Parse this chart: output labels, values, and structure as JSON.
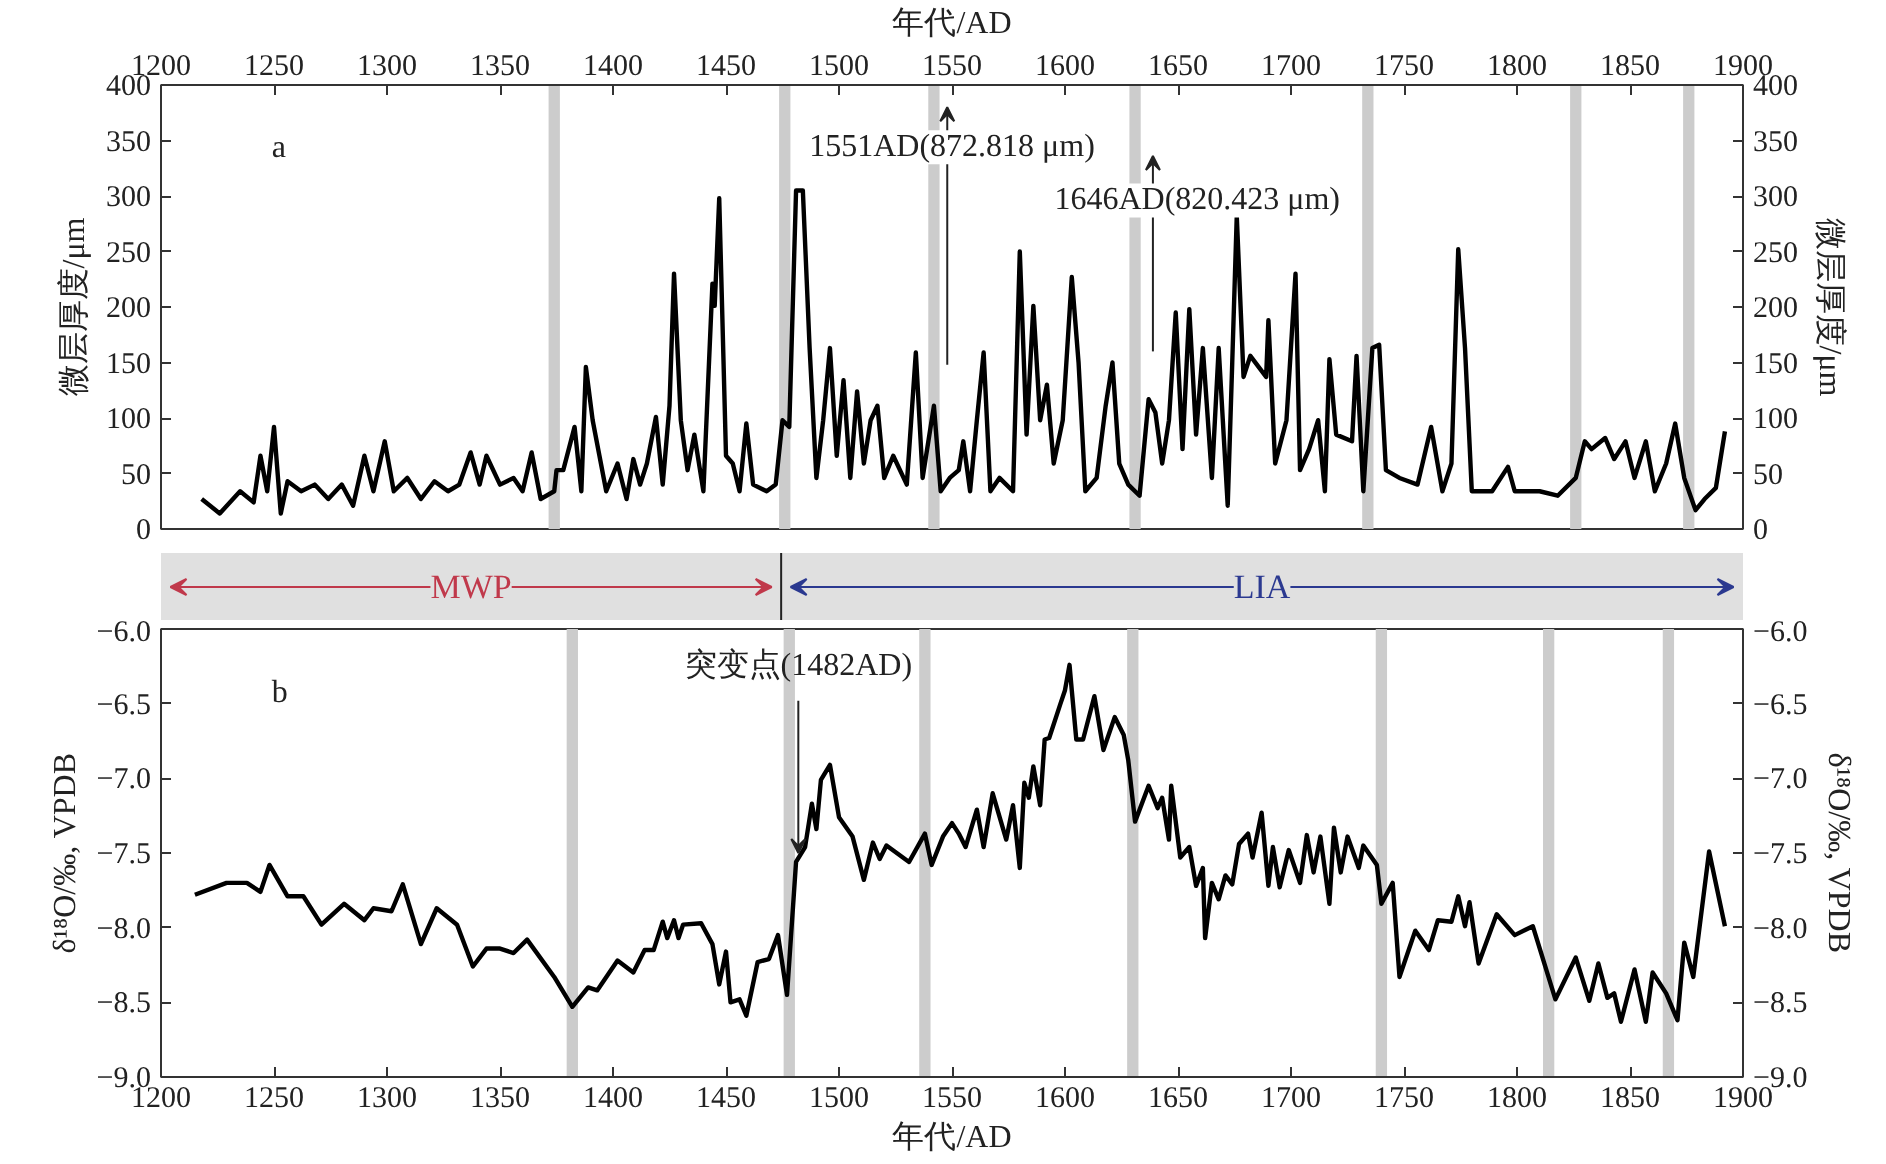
{
  "chart_data": [
    {
      "type": "line",
      "xlabel": "年代/AD",
      "ylabel": "微层厚度/μm",
      "y2label": "微层厚度/μm",
      "xlim": [
        1200,
        1900
      ],
      "xticks": [
        1200,
        1250,
        1300,
        1350,
        1400,
        1450,
        1500,
        1550,
        1600,
        1650,
        1700,
        1750,
        1800,
        1850,
        1900
      ],
      "ylim": [
        0,
        400
      ],
      "yticks": [
        0,
        50,
        100,
        150,
        200,
        250,
        300,
        350,
        400
      ],
      "y2lim": [
        0,
        400
      ],
      "y2ticks": [
        0,
        50,
        100,
        150,
        200,
        250,
        300,
        350,
        400
      ],
      "x": [
        1218,
        1226,
        1235,
        1241,
        1244,
        1247,
        1250,
        1253,
        1256,
        1262,
        1268,
        1274,
        1280,
        1285,
        1290,
        1294,
        1299,
        1303,
        1309,
        1315,
        1321,
        1327,
        1332,
        1337,
        1341,
        1344,
        1350,
        1356,
        1360,
        1364,
        1368,
        1374,
        1375,
        1378,
        1383,
        1386,
        1388,
        1391,
        1394,
        1397,
        1402,
        1406,
        1409,
        1412,
        1415,
        1419,
        1422,
        1425,
        1427,
        1430,
        1433,
        1436,
        1440,
        1444,
        1445,
        1447,
        1450,
        1453,
        1456,
        1459,
        1462,
        1468,
        1472,
        1475,
        1478,
        1481,
        1484,
        1487,
        1490,
        1493,
        1496,
        1499,
        1502,
        1505,
        1508,
        1511,
        1514,
        1517,
        1520,
        1524,
        1530,
        1534,
        1537,
        1542,
        1545,
        1549,
        1553,
        1555,
        1558,
        1561,
        1564,
        1567,
        1571,
        1577,
        1580,
        1583,
        1586,
        1589,
        1592,
        1595,
        1599,
        1603,
        1606,
        1609,
        1614,
        1618,
        1621,
        1624,
        1628,
        1633,
        1637,
        1640,
        1643,
        1646,
        1649,
        1652,
        1655,
        1658,
        1661,
        1665,
        1668,
        1672,
        1674,
        1676,
        1679,
        1682,
        1689,
        1690,
        1693,
        1698,
        1702,
        1704,
        1708,
        1712,
        1715,
        1717,
        1720,
        1727,
        1729,
        1732,
        1736,
        1739,
        1742,
        1748,
        1756,
        1762,
        1767,
        1771,
        1774,
        1777,
        1780,
        1789,
        1796,
        1799,
        1810,
        1818,
        1826,
        1830,
        1833,
        1839,
        1843,
        1848,
        1852,
        1857,
        1861,
        1866,
        1870,
        1874,
        1879,
        1883,
        1888,
        1892
      ],
      "series": [
        {
          "color": "#000000",
          "values": [
            27,
            14,
            34,
            24,
            66,
            34,
            92,
            14,
            43,
            34,
            40,
            27,
            40,
            21,
            66,
            34,
            79,
            34,
            46,
            27,
            43,
            34,
            40,
            69,
            40,
            66,
            40,
            46,
            34,
            69,
            27,
            34,
            53,
            53,
            92,
            34,
            146,
            98,
            66,
            34,
            59,
            27,
            63,
            40,
            59,
            101,
            40,
            111,
            230,
            98,
            53,
            85,
            34,
            221,
            201,
            298,
            66,
            59,
            34,
            95,
            40,
            34,
            40,
            98,
            92,
            305,
            305,
            163,
            46,
            98,
            163,
            66,
            134,
            46,
            124,
            59,
            98,
            111,
            46,
            66,
            40,
            159,
            46,
            111,
            34,
            46,
            53,
            79,
            34,
            98,
            159,
            34,
            46,
            34,
            250,
            85,
            201,
            98,
            130,
            59,
            98,
            227,
            150,
            34,
            46,
            111,
            150,
            59,
            40,
            30,
            117,
            105,
            59,
            98,
            195,
            72,
            198,
            85,
            163,
            46,
            163,
            21,
            150,
            282,
            137,
            156,
            137,
            188,
            59,
            98,
            230,
            53,
            72,
            98,
            34,
            153,
            85,
            79,
            156,
            34,
            163,
            166,
            53,
            46,
            40,
            92,
            34,
            59,
            252,
            163,
            34,
            34,
            56,
            34,
            34,
            30,
            46,
            79,
            72,
            82,
            63,
            79,
            46,
            79,
            34,
            59,
            95,
            46,
            17,
            27,
            37,
            88
          ]
        }
      ],
      "annotations": [
        "a",
        "1551AD(872.818 μm)",
        "1646AD(820.423 μm)",
        "MWP",
        "LIA"
      ],
      "bands": [
        {
          "axis": "x",
          "from": 1371.5,
          "to": 1376.5,
          "color": "#cccccc"
        },
        {
          "axis": "x",
          "from": 1473.5,
          "to": 1478.5,
          "color": "#cccccc"
        },
        {
          "axis": "x",
          "from": 1539.5,
          "to": 1544.5,
          "color": "#cccccc"
        },
        {
          "axis": "x",
          "from": 1628.5,
          "to": 1633.5,
          "color": "#cccccc"
        },
        {
          "axis": "x",
          "from": 1731.5,
          "to": 1736.5,
          "color": "#cccccc"
        },
        {
          "axis": "x",
          "from": 1823.5,
          "to": 1828.5,
          "color": "#cccccc"
        },
        {
          "axis": "x",
          "from": 1873.5,
          "to": 1878.5,
          "color": "#cccccc"
        }
      ]
    },
    {
      "type": "line",
      "xlabel": "年代/AD",
      "ylabel": "δ¹⁸O/‰, VPDB",
      "y2label": "δ¹⁸O/‰, VPDB",
      "xlim": [
        1200,
        1900
      ],
      "xticks": [
        1200,
        1250,
        1300,
        1350,
        1400,
        1450,
        1500,
        1550,
        1600,
        1650,
        1700,
        1750,
        1800,
        1850,
        1900
      ],
      "ylim": [
        -9,
        -6
      ],
      "yticks": [
        {
          "value": -9,
          "label": "−9.0"
        },
        {
          "value": -8.5,
          "label": "−8.5"
        },
        {
          "value": -8,
          "label": "−8.0"
        },
        {
          "value": -7.5,
          "label": "−7.5"
        },
        {
          "value": -7,
          "label": "−7.0"
        },
        {
          "value": -6.5,
          "label": "−6.5"
        },
        {
          "value": -6,
          "label": "−6.0"
        }
      ],
      "y2lim": [
        -9,
        -6
      ],
      "y2ticks": [
        {
          "value": -9,
          "label": "−9.0"
        },
        {
          "value": -8.5,
          "label": "−8.5"
        },
        {
          "value": -8,
          "label": "−8.0"
        },
        {
          "value": -7.5,
          "label": "−7.5"
        },
        {
          "value": -7,
          "label": "−7.0"
        },
        {
          "value": -6.5,
          "label": "−6.5"
        },
        {
          "value": -6,
          "label": "−6.0"
        }
      ],
      "x": [
        1215,
        1229,
        1238,
        1244,
        1248,
        1256,
        1263,
        1271,
        1281,
        1290,
        1294,
        1302,
        1307,
        1315,
        1322,
        1331,
        1338,
        1344,
        1350,
        1356,
        1362,
        1374,
        1382,
        1389,
        1393,
        1402,
        1409,
        1414,
        1418,
        1422,
        1424,
        1427,
        1429,
        1431,
        1439,
        1444,
        1447,
        1450,
        1452,
        1456,
        1459,
        1464,
        1469,
        1473,
        1477,
        1481,
        1485,
        1488,
        1490,
        1492,
        1496,
        1500,
        1506,
        1511,
        1515,
        1518,
        1521,
        1531,
        1538,
        1541,
        1546,
        1550,
        1553,
        1556,
        1561,
        1564,
        1568,
        1574,
        1577,
        1580,
        1582,
        1584,
        1586,
        1589,
        1591,
        1593,
        1598,
        1600,
        1602,
        1603,
        1605,
        1608,
        1613,
        1617,
        1622,
        1626,
        1628,
        1631,
        1637,
        1641,
        1643,
        1646,
        1647,
        1651,
        1655,
        1658,
        1661,
        1662,
        1665,
        1668,
        1671,
        1674,
        1677,
        1681,
        1683,
        1687,
        1690,
        1692,
        1695,
        1699,
        1704,
        1707,
        1710,
        1713,
        1717,
        1719,
        1722,
        1725,
        1730,
        1732,
        1738,
        1740,
        1745,
        1748,
        1755,
        1761,
        1765,
        1771,
        1774,
        1777,
        1779,
        1783,
        1791,
        1799,
        1807,
        1817,
        1826,
        1832,
        1836,
        1840,
        1843,
        1846,
        1852,
        1857,
        1860,
        1866,
        1871,
        1874,
        1878,
        1885,
        1892
      ],
      "series": [
        {
          "color": "#000000",
          "values": [
            -7.78,
            -7.7,
            -7.7,
            -7.76,
            -7.58,
            -7.79,
            -7.79,
            -7.98,
            -7.84,
            -7.95,
            -7.87,
            -7.89,
            -7.71,
            -8.11,
            -7.87,
            -7.98,
            -8.26,
            -8.14,
            -8.14,
            -8.17,
            -8.08,
            -8.33,
            -8.53,
            -8.4,
            -8.42,
            -8.22,
            -8.3,
            -8.15,
            -8.15,
            -7.96,
            -8.07,
            -7.95,
            -8.07,
            -7.98,
            -7.97,
            -8.11,
            -8.38,
            -8.16,
            -8.5,
            -8.48,
            -8.59,
            -8.23,
            -8.21,
            -8.05,
            -8.45,
            -7.56,
            -7.46,
            -7.17,
            -7.34,
            -7.01,
            -6.91,
            -7.26,
            -7.39,
            -7.68,
            -7.43,
            -7.54,
            -7.45,
            -7.56,
            -7.37,
            -7.58,
            -7.39,
            -7.3,
            -7.37,
            -7.46,
            -7.21,
            -7.46,
            -7.1,
            -7.41,
            -7.18,
            -7.6,
            -7.03,
            -7.13,
            -6.92,
            -7.18,
            -6.74,
            -6.73,
            -6.5,
            -6.41,
            -6.24,
            -6.41,
            -6.74,
            -6.74,
            -6.45,
            -6.81,
            -6.59,
            -6.71,
            -6.88,
            -7.29,
            -7.05,
            -7.2,
            -7.13,
            -7.41,
            -7.05,
            -7.53,
            -7.46,
            -7.72,
            -7.6,
            -8.07,
            -7.7,
            -7.81,
            -7.65,
            -7.71,
            -7.44,
            -7.37,
            -7.53,
            -7.23,
            -7.72,
            -7.46,
            -7.73,
            -7.48,
            -7.7,
            -7.38,
            -7.63,
            -7.39,
            -7.84,
            -7.33,
            -7.63,
            -7.39,
            -7.6,
            -7.45,
            -7.58,
            -7.84,
            -7.7,
            -8.33,
            -8.02,
            -8.15,
            -7.95,
            -7.96,
            -7.79,
            -7.99,
            -7.83,
            -8.24,
            -7.91,
            -8.05,
            -7.99,
            -8.48,
            -8.2,
            -8.49,
            -8.24,
            -8.47,
            -8.44,
            -8.63,
            -8.28,
            -8.63,
            -8.3,
            -8.44,
            -8.62,
            -8.1,
            -8.33,
            -7.49,
            -7.99
          ]
        }
      ],
      "annotations": [
        "b",
        {
          "text": "突变点(1482AD)",
          "x": 1482,
          "y": -7.5
        }
      ],
      "bands": [
        {
          "axis": "x",
          "from": 1379.5,
          "to": 1384.5,
          "color": "#cccccc"
        },
        {
          "axis": "x",
          "from": 1475.5,
          "to": 1480.5,
          "color": "#cccccc"
        },
        {
          "axis": "x",
          "from": 1535.5,
          "to": 1540.5,
          "color": "#cccccc"
        },
        {
          "axis": "x",
          "from": 1627.5,
          "to": 1632.5,
          "color": "#cccccc"
        },
        {
          "axis": "x",
          "from": 1737.5,
          "to": 1742.5,
          "color": "#cccccc"
        },
        {
          "axis": "x",
          "from": 1811.5,
          "to": 1816.5,
          "color": "#cccccc"
        },
        {
          "axis": "x",
          "from": 1864.5,
          "to": 1869.5,
          "color": "#cccccc"
        }
      ]
    }
  ]
}
